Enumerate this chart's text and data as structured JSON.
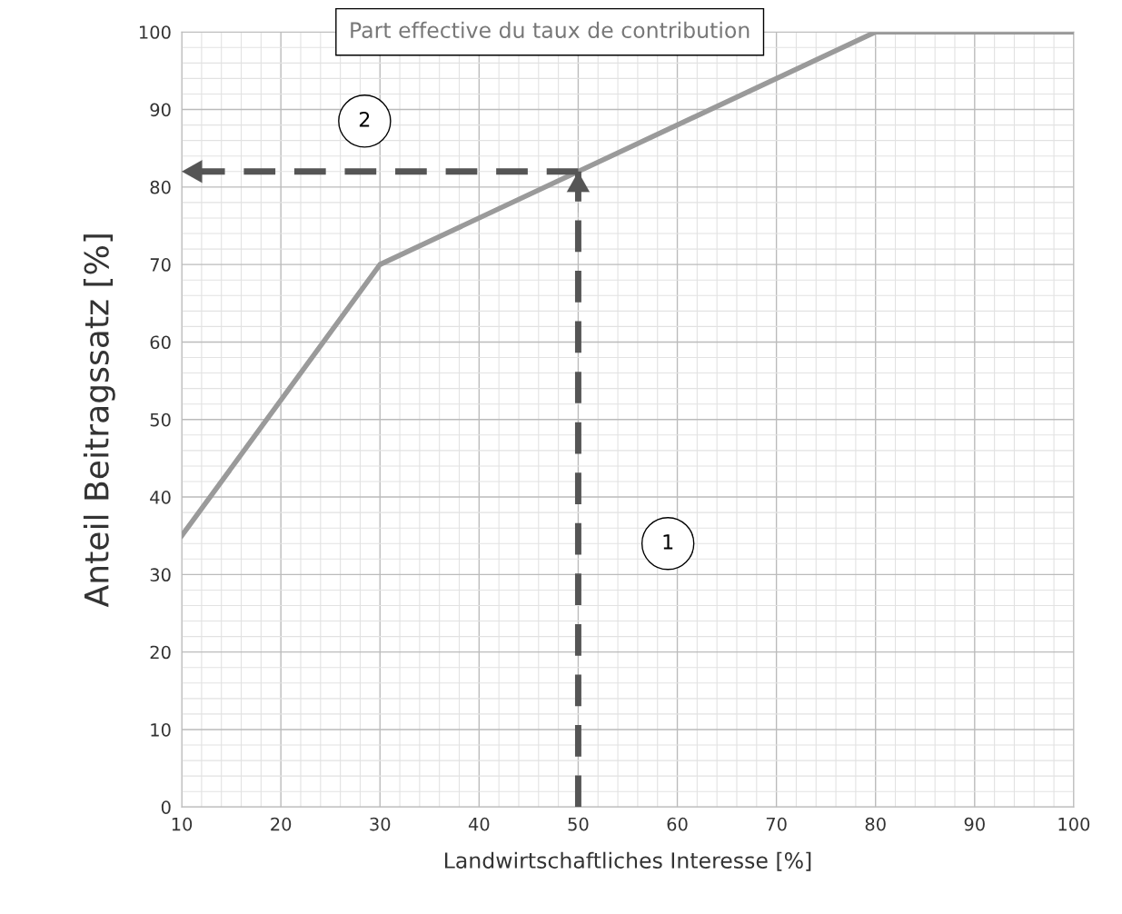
{
  "chart_data": {
    "type": "line",
    "title": "Part effective du taux de contribution",
    "xlabel": "Landwirtschaftliches Interesse [%]",
    "ylabel": "Anteil Beitragssatz [%]",
    "series": [
      {
        "x": [
          10,
          30,
          50,
          80,
          100
        ],
        "values": [
          35,
          70,
          82,
          100,
          100
        ],
        "color": "#9a9a9a",
        "line_style": "solid"
      }
    ],
    "annotations": [
      "1",
      "2"
    ],
    "ref_lines": [
      {
        "axis": "x",
        "value": 50,
        "color": "#555555",
        "line_style": "dashed"
      },
      {
        "axis": "y",
        "value": 82,
        "color": "#555555",
        "line_style": "dashed"
      }
    ],
    "xlim": [
      10,
      100
    ],
    "ylim": [
      0,
      100
    ],
    "xticks": [
      10,
      20,
      30,
      40,
      50,
      60,
      70,
      80,
      90,
      100
    ],
    "yticks": [
      0,
      10,
      20,
      30,
      40,
      50,
      60,
      70,
      80,
      90,
      100
    ],
    "grid": true,
    "marker": "none"
  }
}
